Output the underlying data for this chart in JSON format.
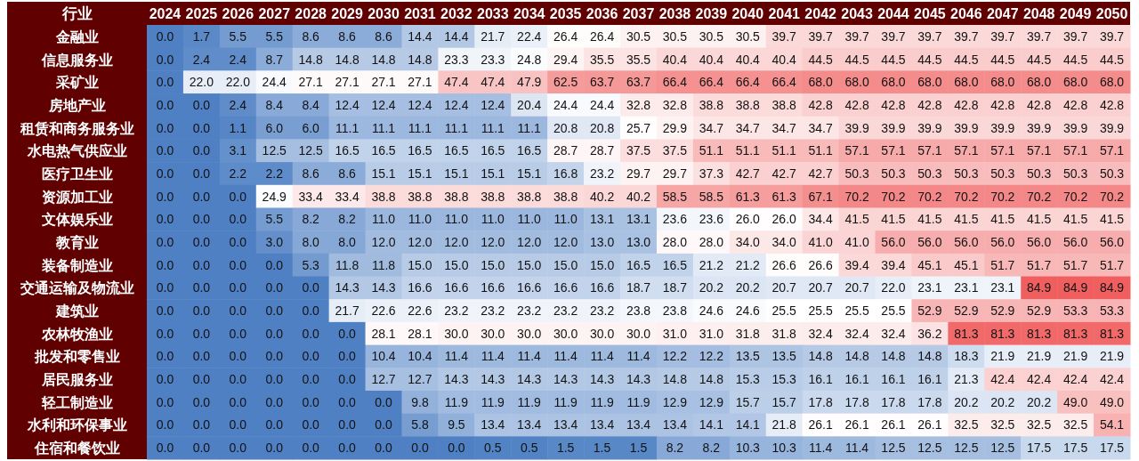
{
  "chart_data": {
    "type": "heatmap",
    "ylabel": "行业",
    "cell_labels": [
      [
        "0.0",
        "1.7",
        "5.5",
        "5.5",
        "8.6",
        "8.6",
        "8.6",
        "14.4",
        "14.4",
        "21.7",
        "22.4",
        "26.4",
        "26.4",
        "30.5",
        "30.5",
        "30.5",
        "30.5",
        "39.7",
        "39.7",
        "39.7",
        "39.7",
        "39.7",
        "39.7",
        "39.7",
        "39.7",
        "39.7",
        "39.7"
      ],
      [
        "0.0",
        "2.4",
        "2.4",
        "8.7",
        "14.8",
        "14.8",
        "14.8",
        "14.8",
        "23.3",
        "23.3",
        "24.8",
        "29.4",
        "35.5",
        "35.5",
        "40.4",
        "40.4",
        "40.4",
        "40.4",
        "44.5",
        "44.5",
        "44.5",
        "44.5",
        "44.5",
        "44.5",
        "44.5",
        "44.5",
        "44.5"
      ],
      [
        "0.0",
        "22.0",
        "22.0",
        "24.4",
        "27.1",
        "27.1",
        "27.1",
        "27.1",
        "47.4",
        "47.4",
        "47.9",
        "62.5",
        "63.7",
        "63.7",
        "66.4",
        "66.4",
        "66.4",
        "66.4",
        "68.0",
        "68.0",
        "68.0",
        "68.0",
        "68.0",
        "68.0",
        "68.0",
        "68.0",
        "68.0"
      ],
      [
        "0.0",
        "0.0",
        "2.4",
        "8.4",
        "8.4",
        "12.4",
        "12.4",
        "12.4",
        "12.4",
        "12.4",
        "20.4",
        "24.4",
        "24.4",
        "32.8",
        "32.8",
        "38.8",
        "38.8",
        "38.8",
        "42.8",
        "42.8",
        "42.8",
        "42.8",
        "42.8",
        "42.8",
        "42.8",
        "42.8",
        "42.8"
      ],
      [
        "0.0",
        "0.0",
        "1.1",
        "6.0",
        "6.0",
        "11.1",
        "11.1",
        "11.1",
        "11.1",
        "11.1",
        "11.1",
        "20.8",
        "20.8",
        "25.7",
        "29.9",
        "34.7",
        "34.7",
        "34.7",
        "34.7",
        "39.9",
        "39.9",
        "39.9",
        "39.9",
        "39.9",
        "39.9",
        "39.9",
        "39.9"
      ],
      [
        "0.0",
        "0.0",
        "3.1",
        "12.5",
        "12.5",
        "16.5",
        "16.5",
        "16.5",
        "16.5",
        "16.5",
        "16.5",
        "28.7",
        "28.7",
        "37.5",
        "37.5",
        "51.1",
        "51.1",
        "51.1",
        "51.1",
        "57.1",
        "57.1",
        "57.1",
        "57.1",
        "57.1",
        "57.1",
        "57.1",
        "57.1"
      ],
      [
        "0.0",
        "0.0",
        "2.2",
        "2.2",
        "8.6",
        "8.6",
        "15.1",
        "15.1",
        "15.1",
        "15.1",
        "15.1",
        "16.8",
        "23.2",
        "29.7",
        "29.7",
        "37.3",
        "42.7",
        "42.7",
        "42.7",
        "50.3",
        "50.3",
        "50.3",
        "50.3",
        "50.3",
        "50.3",
        "50.3",
        "50.3"
      ],
      [
        "0.0",
        "0.0",
        "0.0",
        "24.9",
        "33.4",
        "33.4",
        "38.8",
        "38.8",
        "38.8",
        "38.8",
        "38.8",
        "38.8",
        "40.2",
        "40.2",
        "58.5",
        "58.5",
        "61.3",
        "61.3",
        "67.1",
        "70.2",
        "70.2",
        "70.2",
        "70.2",
        "70.2",
        "70.2",
        "70.2",
        "70.2"
      ],
      [
        "0.0",
        "0.0",
        "0.0",
        "5.5",
        "8.2",
        "8.2",
        "11.0",
        "11.0",
        "11.0",
        "11.0",
        "11.0",
        "11.0",
        "13.1",
        "13.1",
        "23.6",
        "23.6",
        "26.0",
        "26.0",
        "34.4",
        "41.5",
        "41.5",
        "41.5",
        "41.5",
        "41.5",
        "41.5",
        "41.5",
        "41.5"
      ],
      [
        "0.0",
        "0.0",
        "0.0",
        "3.0",
        "8.0",
        "8.0",
        "12.0",
        "12.0",
        "12.0",
        "12.0",
        "12.0",
        "12.0",
        "13.0",
        "13.0",
        "28.0",
        "28.0",
        "34.0",
        "34.0",
        "41.0",
        "41.0",
        "56.0",
        "56.0",
        "56.0",
        "56.0",
        "56.0",
        "56.0",
        "56.0"
      ],
      [
        "0.0",
        "0.0",
        "0.0",
        "0.0",
        "5.3",
        "11.8",
        "11.8",
        "15.0",
        "15.0",
        "15.0",
        "15.0",
        "15.0",
        "15.0",
        "16.5",
        "16.5",
        "21.2",
        "21.2",
        "26.6",
        "26.6",
        "39.4",
        "39.4",
        "45.1",
        "45.1",
        "51.7",
        "51.7",
        "51.7",
        "51.7"
      ],
      [
        "0.0",
        "0.0",
        "0.0",
        "0.0",
        "0.0",
        "14.3",
        "14.3",
        "16.6",
        "16.6",
        "16.6",
        "16.6",
        "16.6",
        "16.6",
        "18.7",
        "18.7",
        "20.2",
        "20.2",
        "20.7",
        "20.7",
        "20.7",
        "22.0",
        "23.1",
        "23.1",
        "23.1",
        "84.9",
        "84.9",
        "84.9"
      ],
      [
        "0.0",
        "0.0",
        "0.0",
        "0.0",
        "0.0",
        "21.7",
        "22.6",
        "22.6",
        "23.2",
        "23.2",
        "23.2",
        "23.2",
        "23.2",
        "23.8",
        "23.8",
        "24.6",
        "24.6",
        "25.5",
        "25.5",
        "25.5",
        "25.5",
        "52.9",
        "52.9",
        "52.9",
        "52.9",
        "53.3",
        "53.3"
      ],
      [
        "0.0",
        "0.0",
        "0.0",
        "0.0",
        "0.0",
        "0.0",
        "28.1",
        "28.1",
        "30.0",
        "30.0",
        "30.0",
        "30.0",
        "30.0",
        "30.0",
        "31.0",
        "31.0",
        "31.8",
        "31.8",
        "32.4",
        "32.4",
        "32.4",
        "36.2",
        "81.3",
        "81.3",
        "81.3",
        "81.3",
        "81.3"
      ],
      [
        "0.0",
        "0.0",
        "0.0",
        "0.0",
        "0.0",
        "0.0",
        "10.4",
        "10.4",
        "11.4",
        "11.4",
        "11.4",
        "11.4",
        "11.4",
        "11.4",
        "12.2",
        "12.2",
        "13.5",
        "13.5",
        "14.8",
        "14.8",
        "14.8",
        "14.8",
        "18.3",
        "21.9",
        "21.9",
        "21.9",
        "21.9"
      ],
      [
        "0.0",
        "0.0",
        "0.0",
        "0.0",
        "0.0",
        "0.0",
        "12.7",
        "12.7",
        "14.3",
        "14.3",
        "14.3",
        "14.3",
        "14.3",
        "14.3",
        "14.8",
        "14.8",
        "15.3",
        "15.3",
        "16.1",
        "16.1",
        "16.1",
        "16.1",
        "21.3",
        "42.4",
        "42.4",
        "42.4",
        "42.4"
      ],
      [
        "0.0",
        "0.0",
        "0.0",
        "0.0",
        "0.0",
        "0.0",
        "0.0",
        "9.8",
        "11.9",
        "11.9",
        "11.9",
        "11.9",
        "11.9",
        "11.9",
        "12.9",
        "12.9",
        "15.7",
        "15.7",
        "17.8",
        "17.8",
        "17.8",
        "17.8",
        "20.2",
        "20.2",
        "20.2",
        "49.0",
        "49.0"
      ],
      [
        "0.0",
        "0.0",
        "0.0",
        "0.0",
        "0.0",
        "0.0",
        "0.0",
        "5.8",
        "9.5",
        "13.4",
        "13.4",
        "13.4",
        "13.4",
        "13.4",
        "13.4",
        "14.1",
        "14.1",
        "21.8",
        "26.1",
        "26.1",
        "26.1",
        "26.1",
        "32.5",
        "32.5",
        "32.5",
        "32.5",
        "54.1"
      ],
      [
        "0.0",
        "0.0",
        "0.0",
        "0.0",
        "0.0",
        "0.0",
        "0.0",
        "0.0",
        "0.0",
        "0.5",
        "0.5",
        "1.5",
        "1.5",
        "1.5",
        "8.2",
        "8.2",
        "10.3",
        "10.3",
        "11.4",
        "11.4",
        "12.5",
        "12.5",
        "12.5",
        "12.5",
        "17.5",
        "17.5",
        "17.5"
      ]
    ],
    "categories": [
      "2024",
      "2025",
      "2026",
      "2027",
      "2028",
      "2029",
      "2030",
      "2031",
      "2032",
      "2033",
      "2034",
      "2035",
      "2036",
      "2037",
      "2038",
      "2039",
      "2040",
      "2041",
      "2042",
      "2043",
      "2044",
      "2045",
      "2046",
      "2047",
      "2048",
      "2049",
      "2050"
    ],
    "y_categories": [
      "金融业",
      "信息服务业",
      "采矿业",
      "房地产业",
      "租赁和商务服务业",
      "水电热气供应业",
      "医疗卫生业",
      "资源加工业",
      "文体娱乐业",
      "教育业",
      "装备制造业",
      "交通运输及物流业",
      "建筑业",
      "农林牧渔业",
      "批发和零售业",
      "居民服务业",
      "轻工制造业",
      "水利和环保事业",
      "住宿和餐饮业"
    ],
    "cells": [
      [
        0.0,
        1.7,
        5.5,
        5.5,
        8.6,
        8.6,
        8.6,
        14.4,
        14.4,
        21.7,
        22.4,
        26.4,
        26.4,
        30.5,
        30.5,
        30.5,
        30.5,
        39.7,
        39.7,
        39.7,
        39.7,
        39.7,
        39.7,
        39.7,
        39.7,
        39.7,
        39.7
      ],
      [
        0.0,
        2.4,
        2.4,
        8.7,
        14.8,
        14.8,
        14.8,
        14.8,
        23.3,
        23.3,
        24.8,
        29.4,
        35.5,
        35.5,
        40.4,
        40.4,
        40.4,
        40.4,
        44.5,
        44.5,
        44.5,
        44.5,
        44.5,
        44.5,
        44.5,
        44.5,
        44.5
      ],
      [
        0.0,
        22.0,
        22.0,
        24.4,
        27.1,
        27.1,
        27.1,
        27.1,
        47.4,
        47.4,
        47.9,
        62.5,
        63.7,
        63.7,
        66.4,
        66.4,
        66.4,
        66.4,
        68.0,
        68.0,
        68.0,
        68.0,
        68.0,
        68.0,
        68.0,
        68.0,
        68.0
      ],
      [
        0.0,
        0.0,
        2.4,
        8.4,
        8.4,
        12.4,
        12.4,
        12.4,
        12.4,
        12.4,
        20.4,
        24.4,
        24.4,
        32.8,
        32.8,
        38.8,
        38.8,
        38.8,
        42.8,
        42.8,
        42.8,
        42.8,
        42.8,
        42.8,
        42.8,
        42.8,
        42.8
      ],
      [
        0.0,
        0.0,
        1.1,
        6.0,
        6.0,
        11.1,
        11.1,
        11.1,
        11.1,
        11.1,
        11.1,
        20.8,
        20.8,
        25.7,
        29.9,
        34.7,
        34.7,
        34.7,
        34.7,
        39.9,
        39.9,
        39.9,
        39.9,
        39.9,
        39.9,
        39.9,
        39.9
      ],
      [
        0.0,
        0.0,
        3.1,
        12.5,
        12.5,
        16.5,
        16.5,
        16.5,
        16.5,
        16.5,
        16.5,
        28.7,
        28.7,
        37.5,
        37.5,
        51.1,
        51.1,
        51.1,
        51.1,
        57.1,
        57.1,
        57.1,
        57.1,
        57.1,
        57.1,
        57.1,
        57.1
      ],
      [
        0.0,
        0.0,
        2.2,
        2.2,
        8.6,
        8.6,
        15.1,
        15.1,
        15.1,
        15.1,
        15.1,
        16.8,
        23.2,
        29.7,
        29.7,
        37.3,
        42.7,
        42.7,
        42.7,
        50.3,
        50.3,
        50.3,
        50.3,
        50.3,
        50.3,
        50.3,
        50.3
      ],
      [
        0.0,
        0.0,
        0.0,
        24.9,
        33.4,
        33.4,
        38.8,
        38.8,
        38.8,
        38.8,
        38.8,
        38.8,
        40.2,
        40.2,
        58.5,
        58.5,
        61.3,
        61.3,
        67.1,
        70.2,
        70.2,
        70.2,
        70.2,
        70.2,
        70.2,
        70.2,
        70.2
      ],
      [
        0.0,
        0.0,
        0.0,
        5.5,
        8.2,
        8.2,
        11.0,
        11.0,
        11.0,
        11.0,
        11.0,
        11.0,
        13.1,
        13.1,
        23.6,
        23.6,
        26.0,
        26.0,
        34.4,
        41.5,
        41.5,
        41.5,
        41.5,
        41.5,
        41.5,
        41.5,
        41.5
      ],
      [
        0.0,
        0.0,
        0.0,
        3.0,
        8.0,
        8.0,
        12.0,
        12.0,
        12.0,
        12.0,
        12.0,
        12.0,
        13.0,
        13.0,
        28.0,
        28.0,
        34.0,
        34.0,
        41.0,
        41.0,
        56.0,
        56.0,
        56.0,
        56.0,
        56.0,
        56.0,
        56.0
      ],
      [
        0.0,
        0.0,
        0.0,
        0.0,
        5.3,
        11.8,
        11.8,
        15.0,
        15.0,
        15.0,
        15.0,
        15.0,
        15.0,
        16.5,
        16.5,
        21.2,
        21.2,
        26.6,
        26.6,
        39.4,
        39.4,
        45.1,
        45.1,
        51.7,
        51.7,
        51.7,
        51.7
      ],
      [
        0.0,
        0.0,
        0.0,
        0.0,
        0.0,
        14.3,
        14.3,
        16.6,
        16.6,
        16.6,
        16.6,
        16.6,
        16.6,
        18.7,
        18.7,
        20.2,
        20.2,
        20.7,
        20.7,
        20.7,
        22.0,
        23.1,
        23.1,
        23.1,
        84.9,
        84.9,
        84.9
      ],
      [
        0.0,
        0.0,
        0.0,
        0.0,
        0.0,
        21.7,
        22.6,
        22.6,
        23.2,
        23.2,
        23.2,
        23.2,
        23.2,
        23.8,
        23.8,
        24.6,
        24.6,
        25.5,
        25.5,
        25.5,
        25.5,
        52.9,
        52.9,
        52.9,
        52.9,
        53.3,
        53.3
      ],
      [
        0.0,
        0.0,
        0.0,
        0.0,
        0.0,
        0.0,
        28.1,
        28.1,
        30.0,
        30.0,
        30.0,
        30.0,
        30.0,
        30.0,
        31.0,
        31.0,
        31.8,
        31.8,
        32.4,
        32.4,
        32.4,
        36.2,
        81.3,
        81.3,
        81.3,
        81.3,
        81.3
      ],
      [
        0.0,
        0.0,
        0.0,
        0.0,
        0.0,
        0.0,
        10.4,
        10.4,
        11.4,
        11.4,
        11.4,
        11.4,
        11.4,
        11.4,
        12.2,
        12.2,
        13.5,
        13.5,
        14.8,
        14.8,
        14.8,
        14.8,
        18.3,
        21.9,
        21.9,
        21.9,
        21.9
      ],
      [
        0.0,
        0.0,
        0.0,
        0.0,
        0.0,
        0.0,
        12.7,
        12.7,
        14.3,
        14.3,
        14.3,
        14.3,
        14.3,
        14.3,
        14.8,
        14.8,
        15.3,
        15.3,
        16.1,
        16.1,
        16.1,
        16.1,
        21.3,
        42.4,
        42.4,
        42.4,
        42.4
      ],
      [
        0.0,
        0.0,
        0.0,
        0.0,
        0.0,
        0.0,
        0.0,
        9.8,
        11.9,
        11.9,
        11.9,
        11.9,
        11.9,
        11.9,
        12.9,
        12.9,
        15.7,
        15.7,
        17.8,
        17.8,
        17.8,
        17.8,
        20.2,
        20.2,
        20.2,
        49.0,
        49.0
      ],
      [
        0.0,
        0.0,
        0.0,
        0.0,
        0.0,
        0.0,
        0.0,
        5.8,
        9.5,
        13.4,
        13.4,
        13.4,
        13.4,
        13.4,
        13.4,
        14.1,
        14.1,
        21.8,
        26.1,
        26.1,
        26.1,
        26.1,
        32.5,
        32.5,
        32.5,
        32.5,
        54.1
      ],
      [
        0.0,
        0.0,
        0.0,
        0.0,
        0.0,
        0.0,
        0.0,
        0.0,
        0.0,
        0.5,
        0.5,
        1.5,
        1.5,
        1.5,
        8.2,
        8.2,
        10.3,
        10.3,
        11.4,
        11.4,
        12.5,
        12.5,
        12.5,
        12.5,
        17.5,
        17.5,
        17.5
      ]
    ]
  }
}
